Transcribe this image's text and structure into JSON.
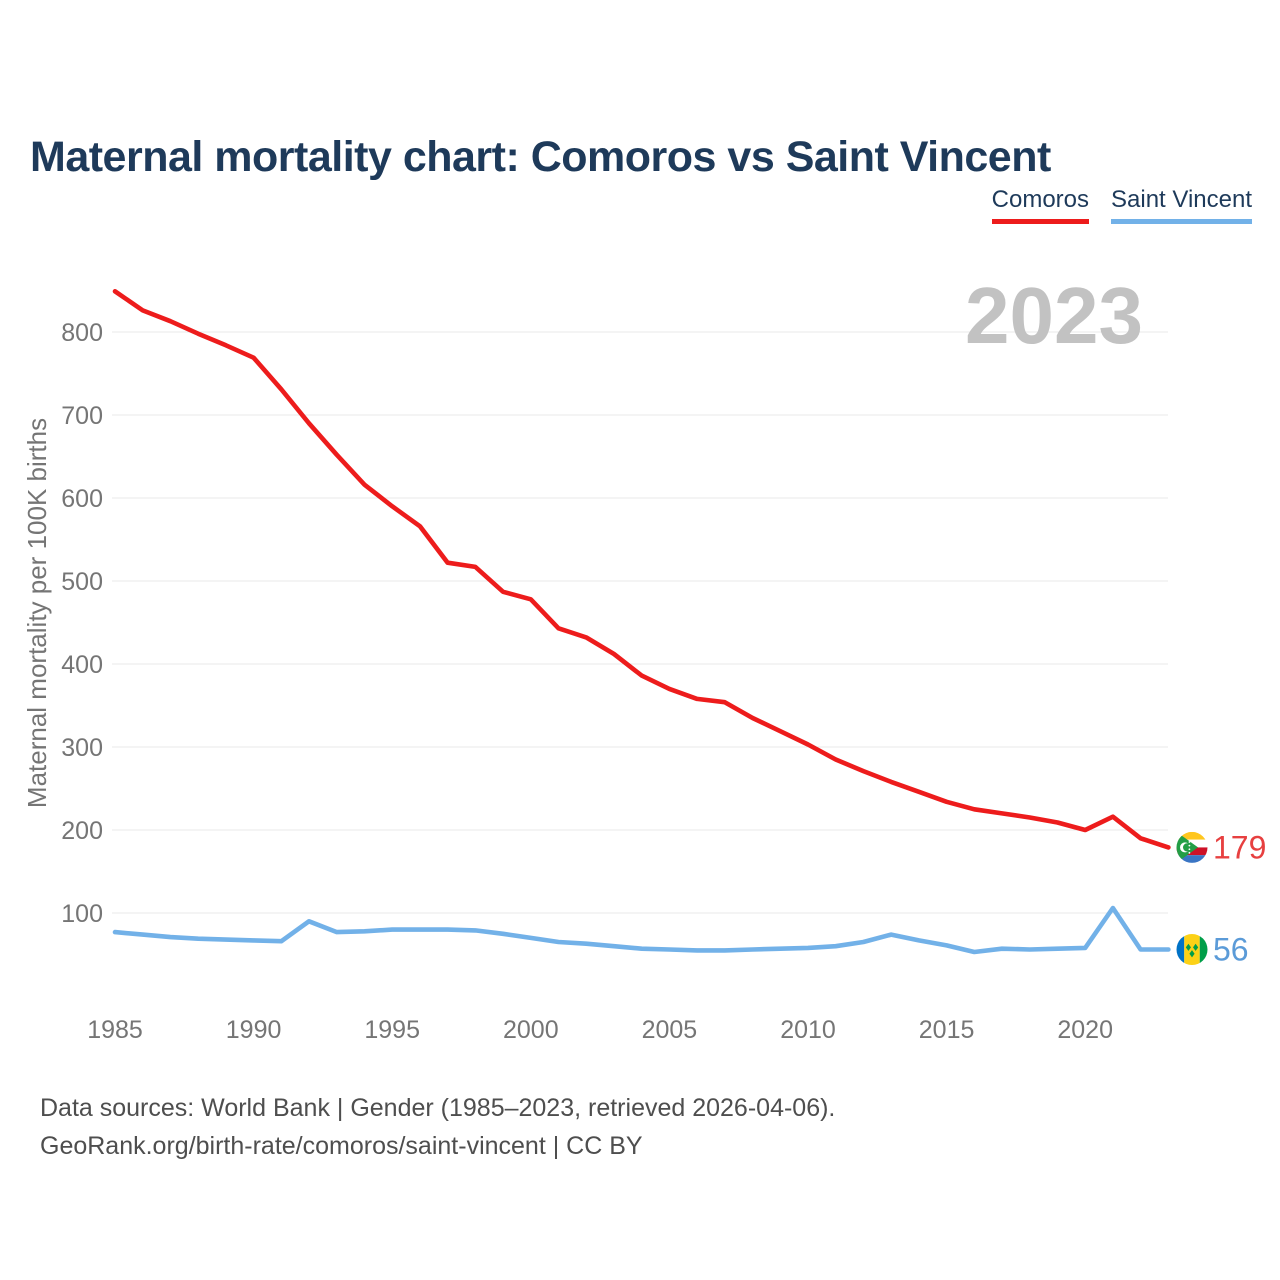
{
  "header": {
    "title": "Maternal mortality chart: Comoros vs Saint Vincent"
  },
  "legend": [
    {
      "label": "Comoros",
      "color": "#ed1c1c"
    },
    {
      "label": "Saint Vincent",
      "color": "#72b1e8"
    }
  ],
  "watermark": "2023",
  "footer": {
    "line1": "Data sources: World Bank | Gender (1985–2023, retrieved 2026-04-06).",
    "line2": "GeoRank.org/birth-rate/comoros/saint-vincent | CC BY"
  },
  "chart_data": {
    "type": "line",
    "title": "Maternal mortality chart: Comoros vs Saint Vincent",
    "xlabel": "",
    "ylabel": "Maternal mortality per 100K births",
    "x_range": [
      1985,
      2023
    ],
    "ylim": [
      40,
      870
    ],
    "grid": true,
    "legend_position": "top-right",
    "x": [
      1985,
      1986,
      1987,
      1988,
      1989,
      1990,
      1991,
      1992,
      1993,
      1994,
      1995,
      1996,
      1997,
      1998,
      1999,
      2000,
      2001,
      2002,
      2003,
      2004,
      2005,
      2006,
      2007,
      2008,
      2009,
      2010,
      2011,
      2012,
      2013,
      2014,
      2015,
      2016,
      2017,
      2018,
      2019,
      2020,
      2021,
      2022,
      2023
    ],
    "x_ticks": [
      1985,
      1990,
      1995,
      2000,
      2005,
      2010,
      2015,
      2020
    ],
    "y_ticks": [
      100,
      200,
      300,
      400,
      500,
      600,
      700,
      800
    ],
    "series": [
      {
        "name": "Comoros",
        "color": "#ed1c1c",
        "label_color": "#e74040",
        "end_label": "179",
        "flag_icon": "comoros-flag-icon",
        "values": [
          849,
          826,
          813,
          798,
          784,
          769,
          731,
          690,
          652,
          616,
          590,
          566,
          522,
          517,
          487,
          478,
          443,
          432,
          412,
          386,
          370,
          358,
          354,
          335,
          319,
          303,
          285,
          271,
          258,
          246,
          234,
          225,
          220,
          215,
          209,
          200,
          216,
          190,
          179
        ]
      },
      {
        "name": "Saint Vincent",
        "color": "#72b1e8",
        "label_color": "#5b9bd8",
        "end_label": "56",
        "flag_icon": "saint-vincent-flag-icon",
        "values": [
          77,
          74,
          71,
          69,
          68,
          67,
          66,
          90,
          77,
          78,
          80,
          80,
          80,
          79,
          75,
          70,
          65,
          63,
          60,
          57,
          56,
          55,
          55,
          56,
          57,
          58,
          60,
          65,
          74,
          67,
          61,
          53,
          57,
          56,
          57,
          58,
          106,
          56,
          56
        ]
      }
    ],
    "flag_colors": {
      "comoros": {
        "yellow": "#FFC61E",
        "white": "#FFFFFF",
        "red": "#CE1126",
        "blue": "#3A75C4",
        "green": "#239E46"
      },
      "saint_vincent": {
        "blue": "#0072C6",
        "yellow": "#FCD116",
        "green": "#009E49"
      }
    }
  }
}
